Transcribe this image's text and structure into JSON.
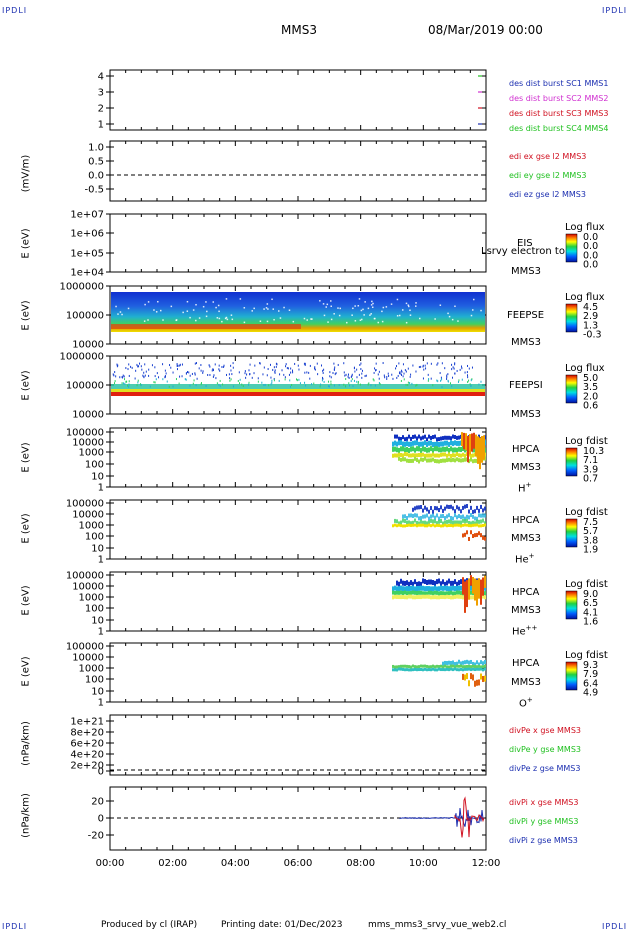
{
  "header": {
    "corner_label": "IPDLI",
    "spacecraft": "MMS3",
    "datetime": "08/Mar/2019 00:00"
  },
  "footer": {
    "produced_by": "Produced by cl (IRAP)",
    "printing_date": "Printing date: 01/Dec/2023",
    "script_name": "mms_mms3_srvy_vue_web2.cl"
  },
  "chart_data": {
    "type": "stacked time-series panels",
    "time_axis": {
      "start": "00:00",
      "end": "12:00",
      "ticks": [
        "00:00",
        "02:00",
        "04:00",
        "06:00",
        "08:00",
        "10:00",
        "12:00"
      ]
    },
    "panels": [
      {
        "id": "burst",
        "type": "line",
        "yticks": [
          "4",
          "3",
          "2",
          "1"
        ],
        "ylim": [
          0.5,
          4.5
        ],
        "legend": [
          {
            "label": "des dist burst SC1 MMS1",
            "color": "#1c2fb0"
          },
          {
            "label": "des dist burst SC2 MMS2",
            "color": "#d030d0"
          },
          {
            "label": "des dist burst SC3 MMS3",
            "color": "#d01020"
          },
          {
            "label": "des dist burst SC4 MMS4",
            "color": "#20c020"
          }
        ]
      },
      {
        "id": "edi",
        "type": "line",
        "ylabel": "(mV/m)",
        "yticks": [
          "1.0",
          "0.5",
          "0.0",
          "-0.5"
        ],
        "ylim": [
          -0.8,
          1.15
        ],
        "legend": [
          {
            "label": "edi ex gse l2 MMS3",
            "color": "#d01020"
          },
          {
            "label": "edi ey gse l2 MMS3",
            "color": "#20c020"
          },
          {
            "label": "edi ez gse l2 MMS3",
            "color": "#1c2fb0"
          }
        ]
      },
      {
        "id": "eis",
        "type": "heatmap",
        "ylabel": "E (eV)",
        "yticks": [
          "1e+07",
          "1e+06",
          "1e+05",
          "1e+04"
        ],
        "instrument": [
          "EIS",
          "MMS3"
        ],
        "overlay_text": "Lsrvy electron to",
        "colorbar": {
          "title": "Log flux",
          "ticks": [
            "0.0",
            "0.0",
            "0.0",
            "0.0"
          ]
        }
      },
      {
        "id": "feepse",
        "type": "heatmap",
        "ylabel": "E (eV)",
        "yticks": [
          "1000000",
          "100000",
          "10000"
        ],
        "instrument": [
          "FEEPSE",
          "MMS3"
        ],
        "colorbar": {
          "title": "Log flux",
          "ticks": [
            "4.5",
            "2.9",
            "1.3",
            "-0.3"
          ]
        }
      },
      {
        "id": "feepsi",
        "type": "heatmap",
        "ylabel": "E (eV)",
        "yticks": [
          "1000000",
          "100000",
          "10000"
        ],
        "instrument": [
          "FEEPSI",
          "MMS3"
        ],
        "colorbar": {
          "title": "Log flux",
          "ticks": [
            "5.0",
            "3.5",
            "2.0",
            "0.6"
          ]
        }
      },
      {
        "id": "hpca_h",
        "type": "heatmap",
        "ylabel": "E (eV)",
        "yticks": [
          "100000",
          "10000",
          "1000",
          "100",
          "10",
          "1"
        ],
        "instrument": [
          "HPCA",
          "MMS3"
        ],
        "species": "H",
        "species_sup": "+",
        "colorbar": {
          "title": "Log fdist",
          "ticks": [
            "10.3",
            "7.1",
            "3.9",
            "0.7"
          ]
        }
      },
      {
        "id": "hpca_he",
        "type": "heatmap",
        "ylabel": "E (eV)",
        "yticks": [
          "100000",
          "10000",
          "1000",
          "100",
          "10",
          "1"
        ],
        "instrument": [
          "HPCA",
          "MMS3"
        ],
        "species": "He",
        "species_sup": "+",
        "colorbar": {
          "title": "Log fdist",
          "ticks": [
            "7.5",
            "5.7",
            "3.8",
            "1.9"
          ]
        }
      },
      {
        "id": "hpca_he2",
        "type": "heatmap",
        "ylabel": "E (eV)",
        "yticks": [
          "100000",
          "10000",
          "1000",
          "100",
          "10",
          "1"
        ],
        "instrument": [
          "HPCA",
          "MMS3"
        ],
        "species": "He",
        "species_sup": "++",
        "colorbar": {
          "title": "Log fdist",
          "ticks": [
            "9.0",
            "6.5",
            "4.1",
            "1.6"
          ]
        }
      },
      {
        "id": "hpca_o",
        "type": "heatmap",
        "ylabel": "E (eV)",
        "yticks": [
          "100000",
          "10000",
          "1000",
          "100",
          "10",
          "1"
        ],
        "instrument": [
          "HPCA",
          "MMS3"
        ],
        "species": "O",
        "species_sup": "+",
        "colorbar": {
          "title": "Log fdist",
          "ticks": [
            "9.3",
            "7.9",
            "6.4",
            "4.9"
          ]
        }
      },
      {
        "id": "divpe",
        "type": "line",
        "ylabel": "(nPa/km)",
        "yticks": [
          "1e+21",
          "8e+20",
          "6e+20",
          "4e+20",
          "2e+20",
          "0"
        ],
        "ylim": [
          -0.05,
          1.05
        ],
        "legend": [
          {
            "label": "divPe x gse MMS3",
            "color": "#d01020"
          },
          {
            "label": "divPe y gse MMS3",
            "color": "#20c020"
          },
          {
            "label": "divPe z gse MMS3",
            "color": "#1c2fb0"
          }
        ]
      },
      {
        "id": "divpi",
        "type": "line",
        "ylabel": "(nPa/km)",
        "yticks": [
          "20",
          "0",
          "-20"
        ],
        "ylim": [
          -38,
          35
        ],
        "legend": [
          {
            "label": "divPi x gse MMS3",
            "color": "#d01020"
          },
          {
            "label": "divPi y gse MMS3",
            "color": "#20c020"
          },
          {
            "label": "divPi z gse MMS3",
            "color": "#1c2fb0"
          }
        ]
      }
    ]
  }
}
